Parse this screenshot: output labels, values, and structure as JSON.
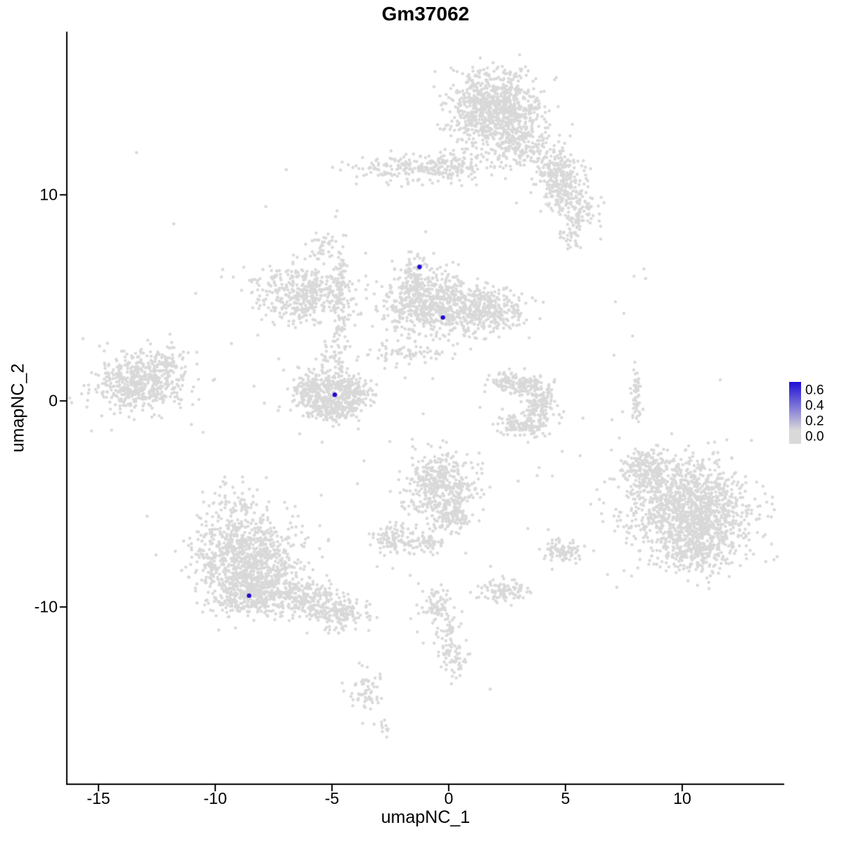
{
  "chart_data": {
    "type": "scatter",
    "title": "Gm37062",
    "xlabel": "umapNC_1",
    "ylabel": "umapNC_2",
    "xlim": [
      -16.4,
      14.4
    ],
    "ylim": [
      -18.6,
      17.9
    ],
    "x_ticks": [
      -15,
      -10,
      -5,
      0,
      5,
      10
    ],
    "x_tick_labels": [
      "-15",
      "-10",
      "-5",
      "0",
      "5",
      "10"
    ],
    "y_ticks": [
      10,
      0,
      -10
    ],
    "y_tick_labels": [
      "10",
      "0",
      "-10"
    ],
    "grid": false,
    "colors": {
      "point": "#d9d9d9",
      "highlight": "#2109d2",
      "axis": "#000000",
      "background": "#ffffff"
    },
    "legend": {
      "position": "right",
      "labels": [
        "0.6",
        "0.4",
        "0.2",
        "0.0"
      ],
      "top_color": "#1f0fd6",
      "bottom_color": "#d9d9d9"
    },
    "clusters": [
      {
        "cx": 1.9,
        "cy": 14.2,
        "sx": 1.0,
        "sy": 0.9,
        "n": 850
      },
      {
        "cx": 3.1,
        "cy": 12.4,
        "sx": 0.8,
        "sy": 0.6,
        "n": 220
      },
      {
        "cx": 4.6,
        "cy": 11.2,
        "sx": 0.5,
        "sy": 0.45,
        "n": 120
      },
      {
        "cx": -1.4,
        "cy": 11.3,
        "sx": 1.3,
        "sy": 0.35,
        "n": 190
      },
      {
        "cx": 0.1,
        "cy": 11.4,
        "sx": 0.5,
        "sy": 0.4,
        "n": 80
      },
      {
        "cx": 4.8,
        "cy": 10.3,
        "sx": 0.45,
        "sy": 0.55,
        "n": 140
      },
      {
        "cx": 5.6,
        "cy": 9.4,
        "sx": 0.4,
        "sy": 0.5,
        "n": 90
      },
      {
        "cx": 5.3,
        "cy": 8.2,
        "sx": 0.3,
        "sy": 0.35,
        "n": 40
      },
      {
        "cx": -0.5,
        "cy": 4.6,
        "sx": 1.2,
        "sy": 0.7,
        "n": 650
      },
      {
        "cx": -1.5,
        "cy": 5.9,
        "sx": 0.4,
        "sy": 0.55,
        "n": 140
      },
      {
        "cx": 1.8,
        "cy": 4.4,
        "sx": 0.8,
        "sy": 0.5,
        "n": 240
      },
      {
        "cx": -6.3,
        "cy": 5.2,
        "sx": 1.0,
        "sy": 0.75,
        "n": 420
      },
      {
        "cx": -5.4,
        "cy": 7.5,
        "sx": 0.3,
        "sy": 0.4,
        "n": 35
      },
      {
        "cx": -4.6,
        "cy": 4.6,
        "sx": 0.18,
        "sy": 1.5,
        "n": 120
      },
      {
        "cx": -13.3,
        "cy": 0.9,
        "sx": 0.95,
        "sy": 0.7,
        "n": 520
      },
      {
        "cx": -11.9,
        "cy": 1.9,
        "sx": 0.5,
        "sy": 0.4,
        "n": 60
      },
      {
        "cx": -5.9,
        "cy": 0.4,
        "sx": 0.45,
        "sy": 0.4,
        "n": 150
      },
      {
        "cx": -5.0,
        "cy": -0.35,
        "sx": 0.55,
        "sy": 0.35,
        "n": 200
      },
      {
        "cx": -4.1,
        "cy": 0.35,
        "sx": 0.45,
        "sy": 0.4,
        "n": 150
      },
      {
        "cx": -5.0,
        "cy": 0.9,
        "sx": 0.6,
        "sy": 0.3,
        "n": 110
      },
      {
        "cx": -5.0,
        "cy": 1.9,
        "sx": 0.3,
        "sy": 0.5,
        "n": 40
      },
      {
        "cx": -1.8,
        "cy": 2.3,
        "sx": 1.0,
        "sy": 0.3,
        "n": 70
      },
      {
        "cx": 3.3,
        "cy": 0.8,
        "sx": 0.5,
        "sy": 0.3,
        "n": 110
      },
      {
        "cx": 3.9,
        "cy": -0.1,
        "sx": 0.35,
        "sy": 0.55,
        "n": 150
      },
      {
        "cx": 3.2,
        "cy": -1.15,
        "sx": 0.55,
        "sy": 0.3,
        "n": 120
      },
      {
        "cx": 2.3,
        "cy": 0.9,
        "sx": 0.3,
        "sy": 0.25,
        "n": 50
      },
      {
        "cx": 8.05,
        "cy": 0.4,
        "sx": 0.12,
        "sy": 0.85,
        "n": 55
      },
      {
        "cx": -0.3,
        "cy": -4.2,
        "sx": 0.75,
        "sy": 0.85,
        "n": 430
      },
      {
        "cx": 0.1,
        "cy": -5.7,
        "sx": 0.4,
        "sy": 0.4,
        "n": 90
      },
      {
        "cx": -2.4,
        "cy": -6.75,
        "sx": 0.5,
        "sy": 0.35,
        "n": 110
      },
      {
        "cx": -1.0,
        "cy": -6.9,
        "sx": 0.3,
        "sy": 0.25,
        "n": 50
      },
      {
        "cx": 10.3,
        "cy": -5.3,
        "sx": 1.3,
        "sy": 1.2,
        "n": 1350
      },
      {
        "cx": 8.6,
        "cy": -3.3,
        "sx": 0.6,
        "sy": 0.5,
        "n": 200
      },
      {
        "cx": 10.7,
        "cy": -7.4,
        "sx": 0.8,
        "sy": 0.5,
        "n": 160
      },
      {
        "cx": -8.7,
        "cy": -7.6,
        "sx": 1.1,
        "sy": 0.95,
        "n": 850
      },
      {
        "cx": -8.3,
        "cy": -9.3,
        "sx": 0.9,
        "sy": 0.55,
        "n": 420
      },
      {
        "cx": -6.1,
        "cy": -9.6,
        "sx": 0.7,
        "sy": 0.45,
        "n": 200
      },
      {
        "cx": -4.8,
        "cy": -10.3,
        "sx": 0.6,
        "sy": 0.4,
        "n": 150
      },
      {
        "cx": -9.2,
        "cy": -4.9,
        "sx": 0.5,
        "sy": 0.6,
        "n": 70
      },
      {
        "cx": 4.9,
        "cy": -7.3,
        "sx": 0.45,
        "sy": 0.3,
        "n": 90
      },
      {
        "cx": 2.3,
        "cy": -9.2,
        "sx": 0.55,
        "sy": 0.3,
        "n": 100
      },
      {
        "cx": -0.6,
        "cy": -9.9,
        "sx": 0.35,
        "sy": 0.45,
        "n": 70
      },
      {
        "cx": 0.0,
        "cy": -11.3,
        "sx": 0.25,
        "sy": 0.7,
        "n": 60
      },
      {
        "cx": 0.3,
        "cy": -12.5,
        "sx": 0.3,
        "sy": 0.4,
        "n": 40
      },
      {
        "cx": -3.6,
        "cy": -14.2,
        "sx": 0.35,
        "sy": 0.55,
        "n": 60
      },
      {
        "cx": -2.9,
        "cy": -15.8,
        "sx": 0.25,
        "sy": 0.25,
        "n": 12
      },
      {
        "cx": -0.9,
        "cy": 0.5,
        "sx": 6.5,
        "sy": 6.0,
        "n": 110
      }
    ],
    "highlighted_cells": [
      {
        "x": -1.25,
        "y": 6.5,
        "value": 0.6
      },
      {
        "x": -0.25,
        "y": 4.05,
        "value": 0.6
      },
      {
        "x": -4.88,
        "y": 0.3,
        "value": 0.6
      },
      {
        "x": -8.55,
        "y": -9.45,
        "value": 0.6
      }
    ]
  }
}
